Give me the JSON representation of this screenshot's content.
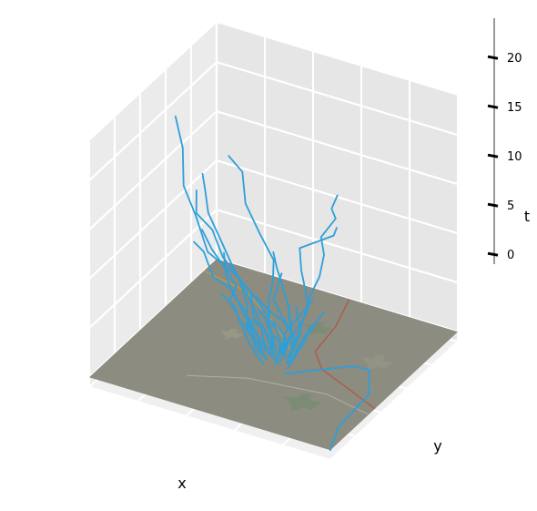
{
  "chart_data": {
    "type": "line",
    "projection": "3d",
    "title": "",
    "xlabel": "x",
    "ylabel": "y",
    "zlabel": "t",
    "z_ticks": [
      "0",
      "5",
      "10",
      "15",
      "20"
    ],
    "zlim": [
      -1,
      24
    ],
    "grid": true,
    "floor_image": "map",
    "colors": {
      "trajectory": "#2e9fd8",
      "pane_left": "#ebebeb",
      "pane_right": "#e6e6e6",
      "pane_floor": "#f0f0f0",
      "grid": "#ffffff",
      "map_base": "#8c8c80",
      "map_road": "#b5503c",
      "map_green": "#6e8c6a"
    },
    "series_count": 28,
    "series": [
      {
        "points": [
          [
            0.55,
            0.5,
            0
          ],
          [
            0.52,
            0.48,
            3
          ],
          [
            0.45,
            0.45,
            6
          ],
          [
            0.4,
            0.42,
            8
          ],
          [
            0.28,
            0.4,
            10
          ],
          [
            0.22,
            0.42,
            13
          ],
          [
            0.18,
            0.4,
            16
          ],
          [
            0.15,
            0.45,
            19
          ],
          [
            0.12,
            0.45,
            22
          ]
        ]
      },
      {
        "points": [
          [
            0.5,
            0.52,
            0
          ],
          [
            0.48,
            0.5,
            3
          ],
          [
            0.5,
            0.46,
            6
          ],
          [
            0.55,
            0.4,
            9
          ],
          [
            0.58,
            0.35,
            12
          ],
          [
            0.55,
            0.3,
            15
          ],
          [
            0.5,
            0.28,
            18
          ],
          [
            0.45,
            0.35,
            20
          ],
          [
            0.42,
            0.3,
            22
          ]
        ]
      },
      {
        "points": [
          [
            0.55,
            0.55,
            0
          ],
          [
            0.58,
            0.58,
            3
          ],
          [
            0.62,
            0.55,
            6
          ],
          [
            0.68,
            0.52,
            9
          ],
          [
            0.72,
            0.48,
            12
          ],
          [
            0.75,
            0.4,
            15
          ],
          [
            0.8,
            0.42,
            17
          ],
          [
            0.82,
            0.35,
            19
          ],
          [
            0.86,
            0.32,
            21
          ]
        ]
      },
      {
        "points": [
          [
            0.55,
            0.45,
            0
          ],
          [
            0.6,
            0.42,
            3
          ],
          [
            0.68,
            0.38,
            6
          ],
          [
            0.75,
            0.3,
            9
          ],
          [
            0.78,
            0.22,
            12
          ],
          [
            0.8,
            0.15,
            15
          ],
          [
            0.82,
            0.1,
            18
          ],
          [
            0.95,
            0.12,
            20
          ],
          [
            1.0,
            0.05,
            22
          ]
        ]
      },
      {
        "points": [
          [
            0.6,
            0.4,
            0
          ],
          [
            0.72,
            0.42,
            1
          ],
          [
            0.85,
            0.45,
            2
          ],
          [
            0.95,
            0.4,
            3
          ],
          [
            1.0,
            0.3,
            2
          ],
          [
            0.98,
            0.1,
            1
          ],
          [
            1.0,
            0.0,
            0
          ]
        ]
      },
      {
        "points": [
          [
            0.45,
            0.5,
            0
          ],
          [
            0.4,
            0.48,
            2
          ],
          [
            0.38,
            0.52,
            4
          ],
          [
            0.33,
            0.55,
            6
          ],
          [
            0.28,
            0.52,
            8
          ],
          [
            0.22,
            0.55,
            10
          ],
          [
            0.18,
            0.5,
            12
          ],
          [
            0.17,
            0.52,
            14
          ]
        ]
      },
      {
        "points": [
          [
            0.48,
            0.55,
            0
          ],
          [
            0.42,
            0.55,
            2
          ],
          [
            0.35,
            0.58,
            4
          ],
          [
            0.28,
            0.6,
            6
          ],
          [
            0.22,
            0.62,
            8
          ],
          [
            0.15,
            0.65,
            10
          ],
          [
            0.12,
            0.68,
            12
          ],
          [
            0.1,
            0.7,
            13
          ]
        ]
      },
      {
        "points": [
          [
            0.5,
            0.42,
            0
          ],
          [
            0.45,
            0.4,
            2
          ],
          [
            0.4,
            0.42,
            4
          ],
          [
            0.38,
            0.38,
            6
          ],
          [
            0.42,
            0.36,
            8
          ],
          [
            0.4,
            0.32,
            10
          ],
          [
            0.35,
            0.3,
            12
          ],
          [
            0.32,
            0.28,
            14
          ]
        ]
      },
      {
        "points": [
          [
            0.52,
            0.47,
            0
          ],
          [
            0.5,
            0.42,
            2
          ],
          [
            0.48,
            0.38,
            4
          ],
          [
            0.46,
            0.35,
            6
          ],
          [
            0.44,
            0.3,
            8
          ],
          [
            0.42,
            0.28,
            10
          ],
          [
            0.4,
            0.3,
            12
          ]
        ]
      },
      {
        "points": [
          [
            0.58,
            0.48,
            0
          ],
          [
            0.6,
            0.45,
            2
          ],
          [
            0.62,
            0.42,
            4
          ],
          [
            0.6,
            0.38,
            6
          ],
          [
            0.58,
            0.35,
            8
          ],
          [
            0.62,
            0.3,
            10
          ],
          [
            0.65,
            0.28,
            12
          ]
        ]
      },
      {
        "points": [
          [
            0.5,
            0.5,
            0
          ],
          [
            0.45,
            0.52,
            2
          ],
          [
            0.38,
            0.5,
            3
          ],
          [
            0.32,
            0.52,
            5
          ],
          [
            0.25,
            0.5,
            6
          ],
          [
            0.2,
            0.52,
            8
          ],
          [
            0.17,
            0.5,
            9
          ]
        ]
      },
      {
        "points": [
          [
            0.53,
            0.53,
            0
          ],
          [
            0.55,
            0.55,
            2
          ],
          [
            0.52,
            0.58,
            4
          ],
          [
            0.48,
            0.6,
            6
          ],
          [
            0.45,
            0.62,
            7
          ],
          [
            0.42,
            0.65,
            8
          ]
        ]
      },
      {
        "points": [
          [
            0.56,
            0.5,
            0
          ],
          [
            0.58,
            0.52,
            2
          ],
          [
            0.55,
            0.48,
            4
          ],
          [
            0.52,
            0.45,
            5
          ],
          [
            0.5,
            0.42,
            6
          ],
          [
            0.48,
            0.4,
            7
          ]
        ]
      },
      {
        "points": [
          [
            0.47,
            0.47,
            0
          ],
          [
            0.45,
            0.45,
            1
          ],
          [
            0.42,
            0.48,
            2
          ],
          [
            0.38,
            0.46,
            3
          ],
          [
            0.35,
            0.48,
            4
          ],
          [
            0.3,
            0.47,
            5
          ]
        ]
      },
      {
        "points": [
          [
            0.54,
            0.44,
            0
          ],
          [
            0.56,
            0.42,
            1
          ],
          [
            0.58,
            0.4,
            3
          ],
          [
            0.55,
            0.38,
            4
          ],
          [
            0.52,
            0.4,
            5
          ],
          [
            0.5,
            0.38,
            6
          ]
        ]
      },
      {
        "points": [
          [
            0.51,
            0.56,
            0
          ],
          [
            0.5,
            0.58,
            1
          ],
          [
            0.52,
            0.6,
            2
          ],
          [
            0.55,
            0.62,
            3
          ],
          [
            0.58,
            0.6,
            4
          ],
          [
            0.6,
            0.62,
            5
          ]
        ]
      },
      {
        "points": [
          [
            0.49,
            0.49,
            0
          ],
          [
            0.46,
            0.5,
            1
          ],
          [
            0.44,
            0.52,
            2
          ],
          [
            0.42,
            0.5,
            3
          ],
          [
            0.4,
            0.52,
            4
          ],
          [
            0.38,
            0.55,
            5
          ]
        ]
      },
      {
        "points": [
          [
            0.57,
            0.47,
            0
          ],
          [
            0.6,
            0.5,
            1
          ],
          [
            0.62,
            0.52,
            2
          ],
          [
            0.64,
            0.5,
            3
          ],
          [
            0.66,
            0.52,
            4
          ],
          [
            0.68,
            0.55,
            5
          ]
        ]
      },
      {
        "points": [
          [
            0.52,
            0.52,
            0
          ],
          [
            0.53,
            0.5,
            1
          ],
          [
            0.55,
            0.5,
            2
          ],
          [
            0.54,
            0.48,
            3
          ],
          [
            0.52,
            0.46,
            4
          ]
        ]
      },
      {
        "points": [
          [
            0.5,
            0.45,
            0
          ],
          [
            0.48,
            0.44,
            1
          ],
          [
            0.46,
            0.46,
            2
          ],
          [
            0.44,
            0.44,
            3
          ],
          [
            0.43,
            0.42,
            4
          ]
        ]
      },
      {
        "points": [
          [
            0.55,
            0.52,
            0
          ],
          [
            0.57,
            0.54,
            1
          ],
          [
            0.58,
            0.56,
            2
          ],
          [
            0.56,
            0.58,
            3
          ],
          [
            0.54,
            0.6,
            4
          ]
        ]
      },
      {
        "points": [
          [
            0.48,
            0.53,
            0
          ],
          [
            0.47,
            0.55,
            1
          ],
          [
            0.45,
            0.56,
            2
          ],
          [
            0.44,
            0.58,
            3
          ]
        ]
      },
      {
        "points": [
          [
            0.53,
            0.46,
            0
          ],
          [
            0.55,
            0.44,
            1
          ],
          [
            0.57,
            0.45,
            2
          ],
          [
            0.58,
            0.43,
            3
          ]
        ]
      },
      {
        "points": [
          [
            0.51,
            0.5,
            0
          ],
          [
            0.5,
            0.47,
            1
          ],
          [
            0.52,
            0.45,
            2
          ],
          [
            0.53,
            0.43,
            3
          ]
        ]
      },
      {
        "points": [
          [
            0.56,
            0.55,
            0
          ],
          [
            0.58,
            0.57,
            1
          ],
          [
            0.6,
            0.56,
            2
          ],
          [
            0.62,
            0.58,
            3
          ]
        ]
      },
      {
        "points": [
          [
            0.46,
            0.51,
            0
          ],
          [
            0.44,
            0.49,
            1
          ],
          [
            0.43,
            0.47,
            2
          ],
          [
            0.41,
            0.46,
            3
          ]
        ]
      },
      {
        "points": [
          [
            0.5,
            0.58,
            0
          ],
          [
            0.52,
            0.61,
            1
          ],
          [
            0.49,
            0.64,
            2
          ],
          [
            0.48,
            0.66,
            3
          ]
        ]
      },
      {
        "points": [
          [
            0.59,
            0.44,
            0
          ],
          [
            0.61,
            0.46,
            1
          ],
          [
            0.63,
            0.45,
            2
          ],
          [
            0.65,
            0.47,
            3
          ]
        ]
      }
    ]
  }
}
